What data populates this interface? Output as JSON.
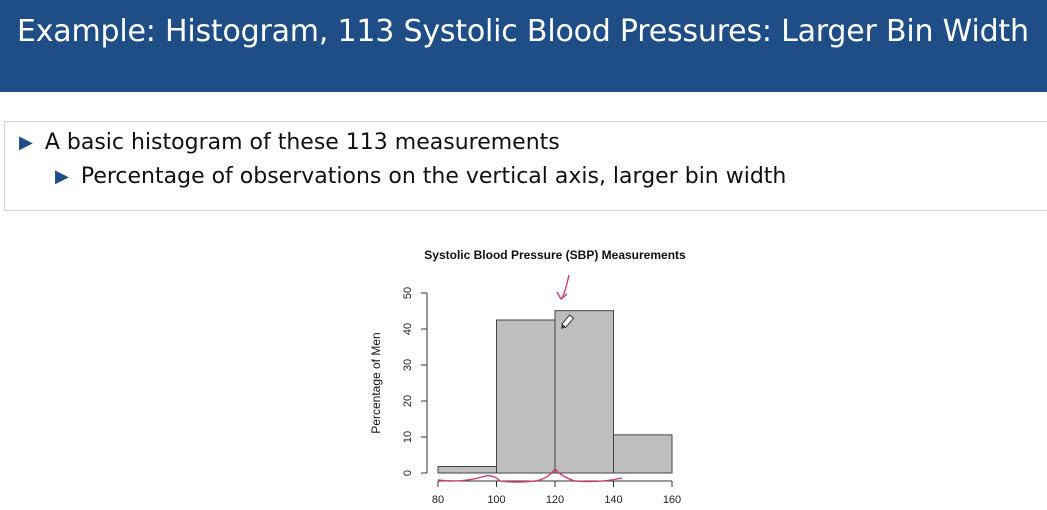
{
  "slide": {
    "title": "Example: Histogram, 113 Systolic Blood Pressures: Larger Bin Width",
    "bullets": [
      {
        "text": "A basic histogram of these 113 measurements",
        "level": 1,
        "marker": "triangle-right-icon"
      },
      {
        "text": "Percentage of observations on the vertical axis, larger bin width",
        "level": 2,
        "marker": "triangle-right-icon"
      }
    ]
  },
  "colors": {
    "title_bar": "#1f4e86",
    "bar_fill": "#bebebe",
    "bar_stroke": "#444444",
    "annotation": "#c8406a"
  },
  "chart_data": {
    "type": "bar",
    "title": "Systolic Blood Pressure (SBP) Measurements",
    "ylabel": "Percentage of Men",
    "xlabel": "",
    "bins": [
      {
        "x0": 80,
        "x1": 100,
        "value": 1.8
      },
      {
        "x0": 100,
        "x1": 120,
        "value": 42.5
      },
      {
        "x0": 120,
        "x1": 140,
        "value": 45.1
      },
      {
        "x0": 140,
        "x1": 160,
        "value": 10.6
      }
    ],
    "xticks": [
      "80",
      "100",
      "120",
      "140",
      "160"
    ],
    "yticks": [
      "0",
      "10",
      "20",
      "30",
      "40",
      "50"
    ],
    "xlim": [
      80,
      160
    ],
    "ylim": [
      0,
      50
    ],
    "grid": false
  }
}
